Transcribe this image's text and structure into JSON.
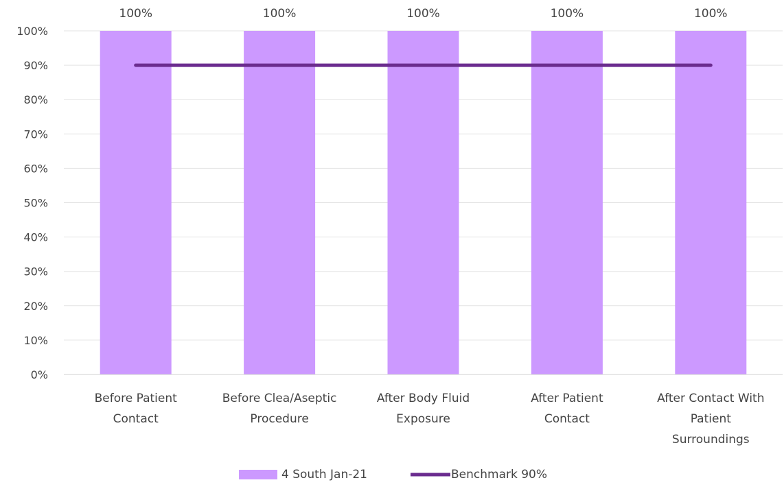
{
  "chart_data": {
    "type": "bar",
    "categories": [
      "Before Patient Contact",
      "Before Clea/Aseptic Procedure",
      "After Body Fluid Exposure",
      "After Patient Contact",
      "After Contact With Patient Surroundings"
    ],
    "category_lines": [
      [
        "Before Patient",
        "Contact"
      ],
      [
        "Before Clea/Aseptic",
        "Procedure"
      ],
      [
        "After Body Fluid",
        "Exposure"
      ],
      [
        "After Patient",
        "Contact"
      ],
      [
        "After Contact With",
        "Patient",
        "Surroundings"
      ]
    ],
    "series": [
      {
        "name": "4 South Jan-21",
        "kind": "bar",
        "color": "#cc99ff",
        "values": [
          100,
          100,
          100,
          100,
          100
        ],
        "data_labels": [
          "100%",
          "100%",
          "100%",
          "100%",
          "100%"
        ]
      },
      {
        "name": "Benchmark 90%",
        "kind": "line",
        "color": "#6b2c8f",
        "values": [
          90,
          90,
          90,
          90,
          90
        ]
      }
    ],
    "yticks": [
      0,
      10,
      20,
      30,
      40,
      50,
      60,
      70,
      80,
      90,
      100
    ],
    "ytick_labels": [
      "0%",
      "10%",
      "20%",
      "30%",
      "40%",
      "50%",
      "60%",
      "70%",
      "80%",
      "90%",
      "100%"
    ],
    "ylim": [
      0,
      100
    ],
    "grid": true,
    "legend_position": "bottom"
  }
}
